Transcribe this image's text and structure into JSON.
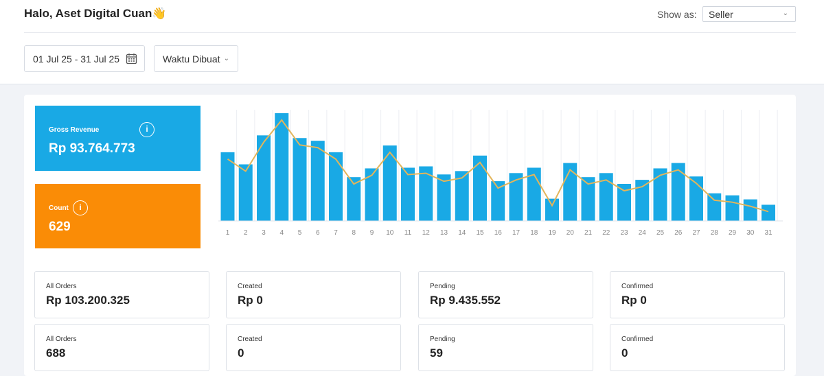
{
  "header": {
    "greeting": "Halo, Aset Digital Cuan",
    "emoji": "👋",
    "show_as_label": "Show as:",
    "show_as_value": "Seller"
  },
  "filters": {
    "date_range": "01 Jul 25 - 31 Jul 25",
    "date_type": "Waktu Dibuat"
  },
  "kpis": {
    "revenue": {
      "label": "Gross Revenue",
      "value": "Rp 93.764.773"
    },
    "count": {
      "label": "Count",
      "value": "629"
    }
  },
  "colors": {
    "bar": "#19a9e5",
    "line": "#e3b55a",
    "revenue_tile": "#19a9e5",
    "count_tile": "#fa8c06"
  },
  "chart_data": {
    "type": "bar",
    "categories": [
      "1",
      "2",
      "3",
      "4",
      "5",
      "6",
      "7",
      "8",
      "9",
      "10",
      "11",
      "12",
      "13",
      "14",
      "15",
      "16",
      "17",
      "18",
      "19",
      "20",
      "21",
      "22",
      "23",
      "24",
      "25",
      "26",
      "27",
      "28",
      "29",
      "30",
      "31"
    ],
    "series": [
      {
        "values": [
          102,
          84,
          127,
          160,
          123,
          119,
          102,
          65,
          78,
          112,
          79,
          81,
          69,
          74,
          97,
          59,
          71,
          79,
          33,
          86,
          65,
          71,
          55,
          61,
          78,
          86,
          66,
          41,
          38,
          32,
          24
        ]
      }
    ],
    "line_values": [
      102,
      84,
      127,
      160,
      123,
      119,
      102,
      65,
      78,
      112,
      79,
      81,
      69,
      74,
      97,
      59,
      71,
      79,
      33,
      86,
      65,
      71,
      55,
      61,
      78,
      86,
      66,
      41,
      38,
      32,
      24
    ],
    "ylim": [
      0,
      165
    ],
    "grid": true
  },
  "summary": {
    "row1": [
      {
        "label": "All Orders",
        "value": "Rp 103.200.325"
      },
      {
        "label": "Created",
        "value": "Rp 0"
      },
      {
        "label": "Pending",
        "value": "Rp 9.435.552"
      },
      {
        "label": "Confirmed",
        "value": "Rp 0"
      }
    ],
    "row2": [
      {
        "label": "All Orders",
        "value": "688"
      },
      {
        "label": "Created",
        "value": "0"
      },
      {
        "label": "Pending",
        "value": "59"
      },
      {
        "label": "Confirmed",
        "value": "0"
      }
    ]
  }
}
